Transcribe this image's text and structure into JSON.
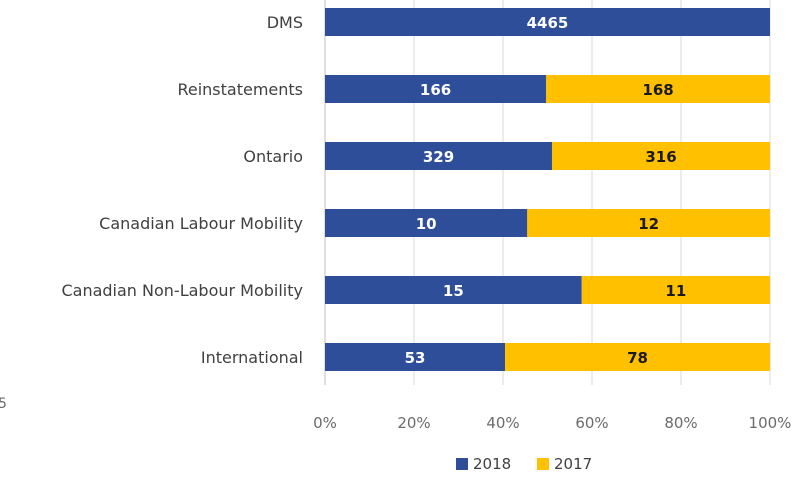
{
  "chart_data": {
    "type": "bar",
    "orientation": "horizontal",
    "stacking": "percent",
    "categories": [
      "DMS",
      "Reinstatements",
      "Ontario",
      "Canadian Labour Mobility",
      "Canadian Non-Labour Mobility",
      "International"
    ],
    "series": [
      {
        "name": "2018",
        "values": [
          4465,
          166,
          329,
          10,
          15,
          53
        ],
        "color": "#2e4e9a",
        "label_color": "#ffffff"
      },
      {
        "name": "2017",
        "values": [
          null,
          168,
          316,
          12,
          11,
          78
        ],
        "color": "#ffc000",
        "label_color": "#1a1a1a"
      }
    ],
    "x_ticks": [
      "0%",
      "20%",
      "40%",
      "60%",
      "80%",
      "100%"
    ],
    "xlim": [
      0,
      100
    ],
    "grid": true,
    "legend": "bottom",
    "stray_text": "5"
  }
}
